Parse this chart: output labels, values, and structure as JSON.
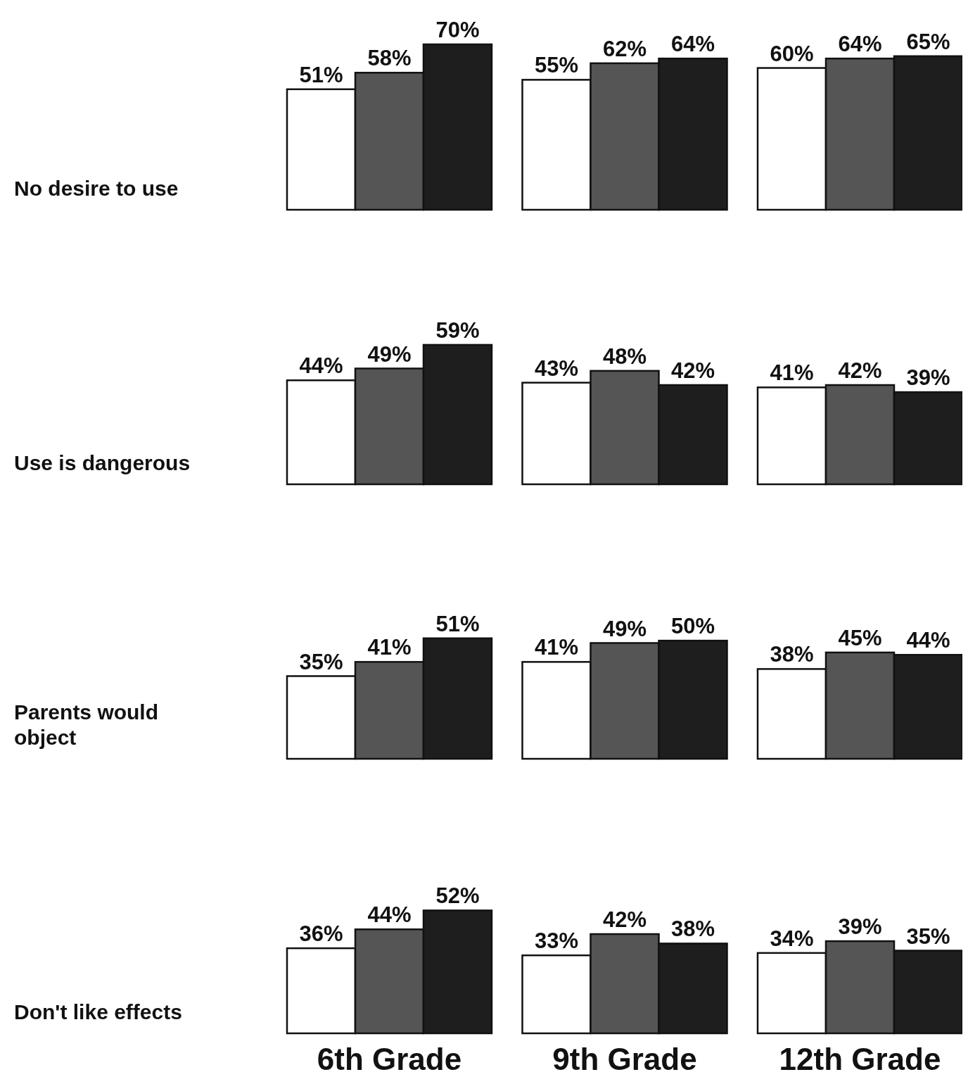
{
  "chart_data": [
    {
      "type": "bar",
      "ylabel": "No desire to use",
      "categories": [
        null,
        null,
        null
      ],
      "series": [
        {
          "color": "#ffffff",
          "values": [
            51,
            55,
            60
          ],
          "value_labels": [
            "51%",
            "55%",
            "60%"
          ]
        },
        {
          "color": "#555555",
          "values": [
            58,
            62,
            64
          ],
          "value_labels": [
            "58%",
            "62%",
            "64%"
          ]
        },
        {
          "color": "#1e1e1e",
          "values": [
            70,
            64,
            65
          ],
          "value_labels": [
            "70%",
            "64%",
            "65%"
          ]
        }
      ]
    },
    {
      "type": "bar",
      "ylabel": "Use is dangerous",
      "categories": [
        null,
        null,
        null
      ],
      "series": [
        {
          "color": "#ffffff",
          "values": [
            44,
            43,
            41
          ],
          "value_labels": [
            "44%",
            "43%",
            "41%"
          ]
        },
        {
          "color": "#555555",
          "values": [
            49,
            48,
            42
          ],
          "value_labels": [
            "49%",
            "48%",
            "42%"
          ]
        },
        {
          "color": "#1e1e1e",
          "values": [
            59,
            42,
            39
          ],
          "value_labels": [
            "59%",
            "42%",
            "39%"
          ]
        }
      ]
    },
    {
      "type": "bar",
      "ylabel": "Parents would object",
      "categories": [
        null,
        null,
        null
      ],
      "series": [
        {
          "color": "#ffffff",
          "values": [
            35,
            41,
            38
          ],
          "value_labels": [
            "35%",
            "41%",
            "38%"
          ]
        },
        {
          "color": "#555555",
          "values": [
            41,
            49,
            45
          ],
          "value_labels": [
            "41%",
            "49%",
            "45%"
          ]
        },
        {
          "color": "#1e1e1e",
          "values": [
            51,
            50,
            44
          ],
          "value_labels": [
            "51%",
            "50%",
            "44%"
          ]
        }
      ]
    },
    {
      "type": "bar",
      "ylabel": "Don't like effects",
      "categories": [
        "6th Grade",
        "9th Grade",
        "12th Grade"
      ],
      "series": [
        {
          "color": "#ffffff",
          "values": [
            36,
            33,
            34
          ],
          "value_labels": [
            "36%",
            "33%",
            "34%"
          ]
        },
        {
          "color": "#555555",
          "values": [
            44,
            42,
            39
          ],
          "value_labels": [
            "44%",
            "42%",
            "39%"
          ]
        },
        {
          "color": "#1e1e1e",
          "values": [
            52,
            38,
            35
          ],
          "value_labels": [
            "52%",
            "38%",
            "35%"
          ]
        }
      ]
    }
  ]
}
